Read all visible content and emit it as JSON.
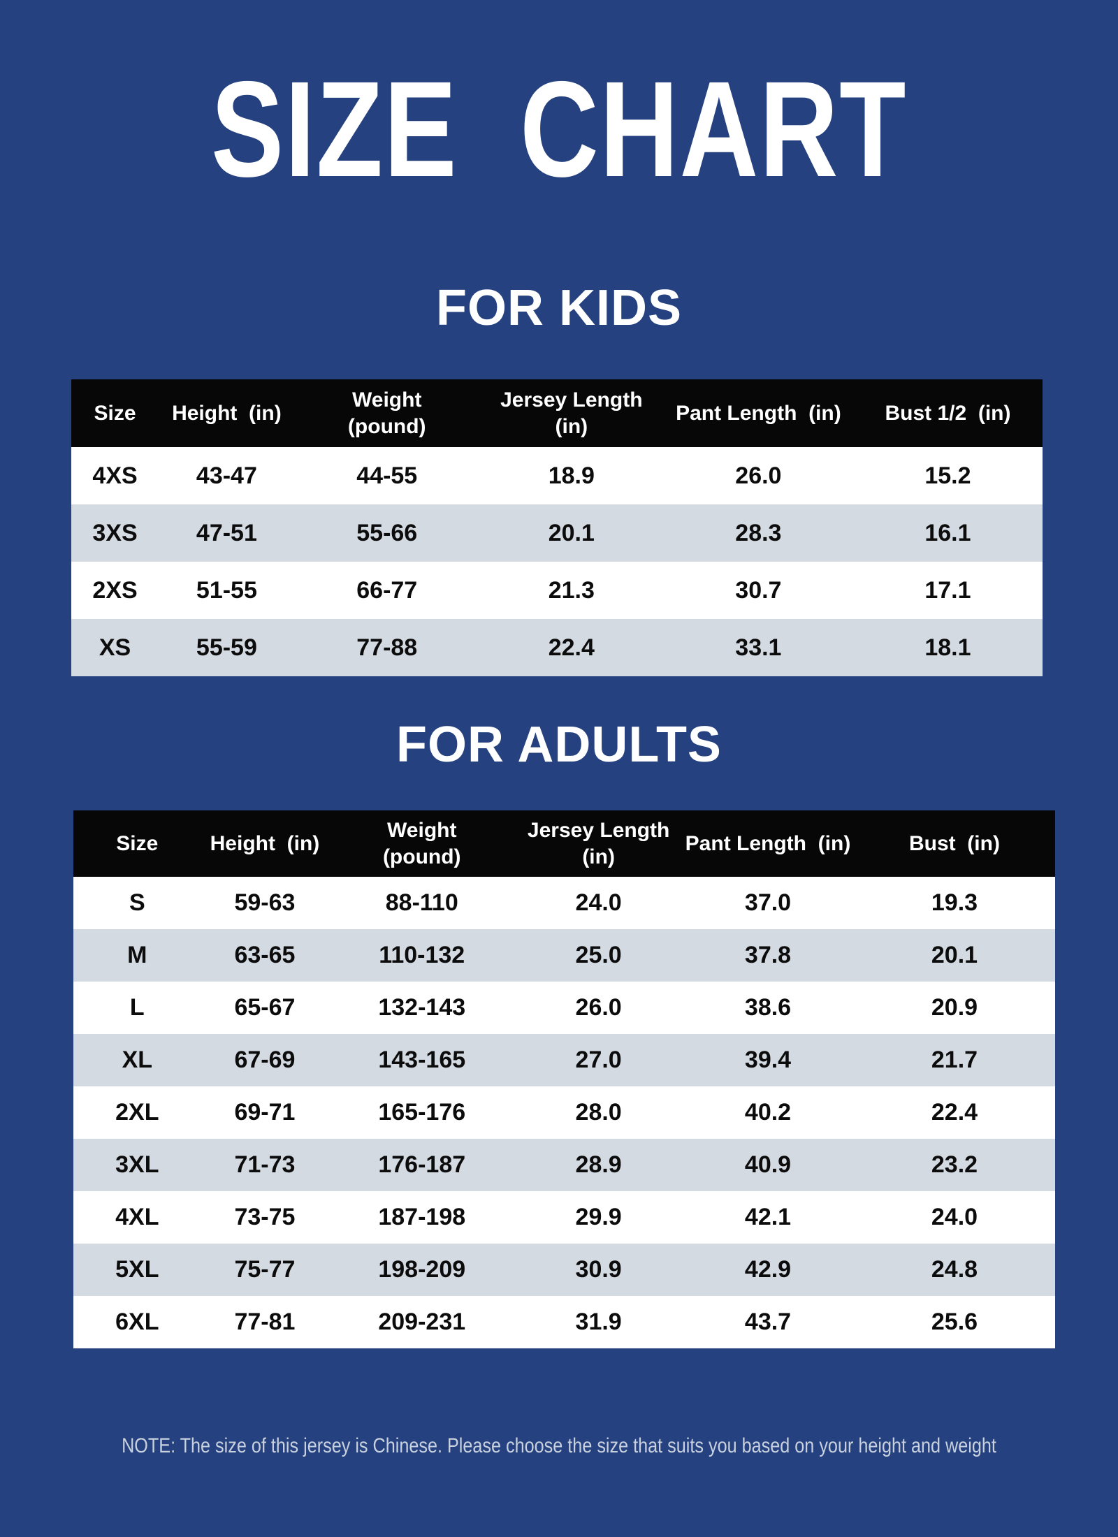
{
  "page": {
    "title": "SIZE CHART",
    "note": "NOTE: The size of this jersey is Chinese. Please choose the size that suits you based on your height and weight",
    "colors": {
      "background": "#25417F",
      "table_header_bg": "#070707",
      "table_header_text": "#FFFFFF",
      "row_white": "#FFFFFF",
      "row_alt_gray": "#D4DAE2",
      "cell_text": "#0C0C0C",
      "note_text": "#C8D1DD",
      "title_text": "#FFFFFF"
    }
  },
  "kids_section": {
    "heading": "FOR KIDS",
    "table": {
      "columns": [
        "Size",
        "Height  (in)",
        "Weight\n(pound)",
        "Jersey Length\n(in)",
        "Pant Length  (in)",
        "Bust 1/2  (in)"
      ],
      "rows": [
        [
          "4XS",
          "43-47",
          "44-55",
          "18.9",
          "26.0",
          "15.2"
        ],
        [
          "3XS",
          "47-51",
          "55-66",
          "20.1",
          "28.3",
          "16.1"
        ],
        [
          "2XS",
          "51-55",
          "66-77",
          "21.3",
          "30.7",
          "17.1"
        ],
        [
          "XS",
          "55-59",
          "77-88",
          "22.4",
          "33.1",
          "18.1"
        ]
      ]
    }
  },
  "adults_section": {
    "heading": "FOR ADULTS",
    "table": {
      "columns": [
        "Size",
        "Height  (in)",
        "Weight\n(pound)",
        "Jersey Length\n(in)",
        "Pant Length  (in)",
        "Bust  (in)"
      ],
      "rows": [
        [
          "S",
          "59-63",
          "88-110",
          "24.0",
          "37.0",
          "19.3"
        ],
        [
          "M",
          "63-65",
          "110-132",
          "25.0",
          "37.8",
          "20.1"
        ],
        [
          "L",
          "65-67",
          "132-143",
          "26.0",
          "38.6",
          "20.9"
        ],
        [
          "XL",
          "67-69",
          "143-165",
          "27.0",
          "39.4",
          "21.7"
        ],
        [
          "2XL",
          "69-71",
          "165-176",
          "28.0",
          "40.2",
          "22.4"
        ],
        [
          "3XL",
          "71-73",
          "176-187",
          "28.9",
          "40.9",
          "23.2"
        ],
        [
          "4XL",
          "73-75",
          "187-198",
          "29.9",
          "42.1",
          "24.0"
        ],
        [
          "5XL",
          "75-77",
          "198-209",
          "30.9",
          "42.9",
          "24.8"
        ],
        [
          "6XL",
          "77-81",
          "209-231",
          "31.9",
          "43.7",
          "25.6"
        ]
      ]
    }
  }
}
